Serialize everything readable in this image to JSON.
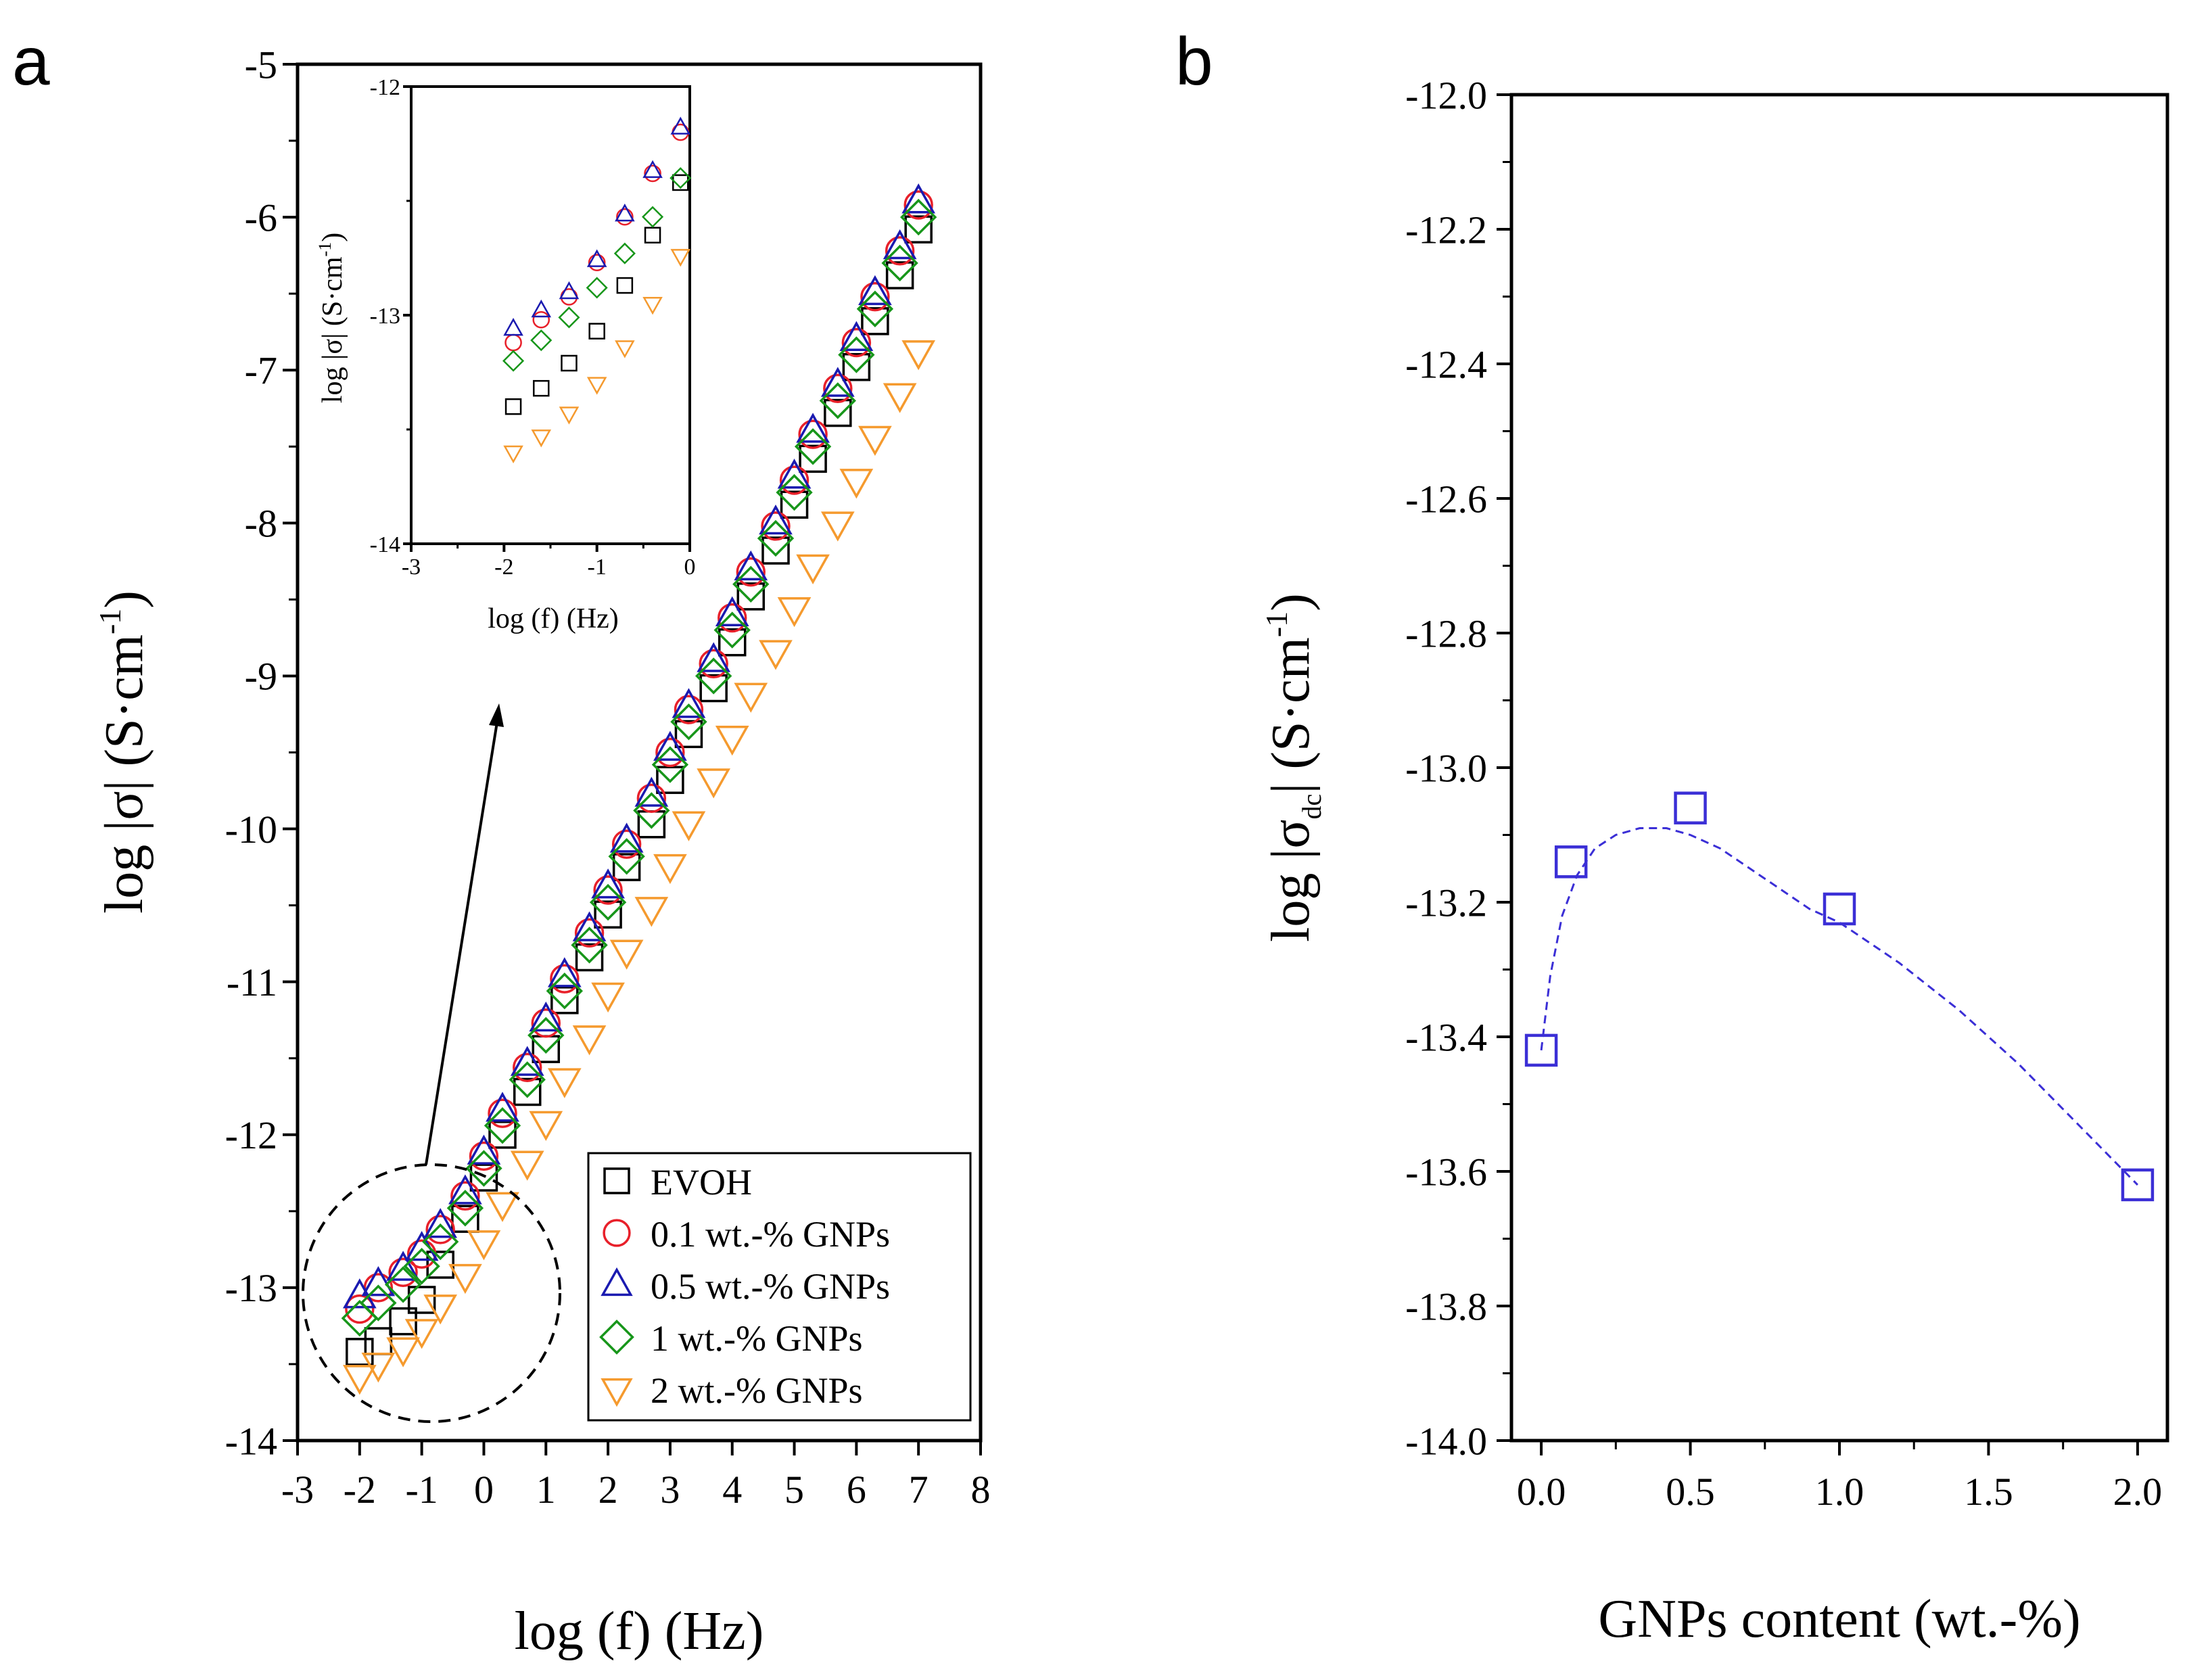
{
  "panel_labels": {
    "a": "a",
    "b": "b"
  },
  "colors": {
    "EVOH": "#000000",
    "GNP01": "#e8202a",
    "GNP05": "#1a1ab0",
    "GNP1": "#17961a",
    "GNP2": "#f59a2e",
    "dc_marker": "#3b2fd6",
    "dc_fit": "#3b2fd6"
  },
  "chart_data": [
    {
      "id": "panel-a-main",
      "type": "scatter",
      "xlabel": "log (f) (Hz)",
      "ylabel": "log |σ| (S·cm",
      "ylabel_sup": "-1",
      "ylabel_close": ")",
      "xlim": [
        -3,
        8
      ],
      "ylim": [
        -14,
        -5
      ],
      "xticks": [
        "-3",
        "-2",
        "-1",
        "0",
        "1",
        "2",
        "3",
        "4",
        "5",
        "6",
        "7",
        "8"
      ],
      "yticks": [
        "-5",
        "-6",
        "-7",
        "-8",
        "-9",
        "-10",
        "-11",
        "-12",
        "-13",
        "-14"
      ],
      "x": [
        -2.0,
        -1.7,
        -1.3,
        -1.0,
        -0.7,
        -0.3,
        0.0,
        0.3,
        0.7,
        1.0,
        1.3,
        1.7,
        2.0,
        2.3,
        2.7,
        3.0,
        3.3,
        3.7,
        4.0,
        4.3,
        4.7,
        5.0,
        5.3,
        5.7,
        6.0,
        6.3,
        6.7,
        7.0
      ],
      "series": [
        {
          "name": "EVOH",
          "marker": "square",
          "color_key": "EVOH",
          "values": [
            -13.42,
            -13.35,
            -13.22,
            -13.08,
            -12.85,
            -12.55,
            -12.28,
            -12.0,
            -11.72,
            -11.44,
            -11.12,
            -10.84,
            -10.56,
            -10.25,
            -9.97,
            -9.68,
            -9.38,
            -9.08,
            -8.78,
            -8.48,
            -8.18,
            -7.88,
            -7.58,
            -7.28,
            -6.98,
            -6.68,
            -6.38,
            -6.08
          ]
        },
        {
          "name": "0.1 wt.-% GNPs",
          "marker": "circle",
          "color_key": "GNP01",
          "values": [
            -13.14,
            -13.0,
            -12.9,
            -12.78,
            -12.62,
            -12.4,
            -12.14,
            -11.86,
            -11.56,
            -11.27,
            -10.98,
            -10.68,
            -10.4,
            -10.1,
            -9.8,
            -9.5,
            -9.22,
            -8.92,
            -8.62,
            -8.32,
            -8.02,
            -7.72,
            -7.42,
            -7.12,
            -6.82,
            -6.52,
            -6.22,
            -5.92
          ]
        },
        {
          "name": "0.5 wt.-% GNPs",
          "marker": "triangle-up",
          "color_key": "GNP05",
          "values": [
            -13.06,
            -12.98,
            -12.88,
            -12.75,
            -12.6,
            -12.38,
            -12.12,
            -11.84,
            -11.54,
            -11.25,
            -10.96,
            -10.66,
            -10.38,
            -10.08,
            -9.78,
            -9.48,
            -9.2,
            -8.9,
            -8.6,
            -8.3,
            -8.0,
            -7.7,
            -7.4,
            -7.1,
            -6.8,
            -6.5,
            -6.2,
            -5.9
          ]
        },
        {
          "name": "1 wt.-% GNPs",
          "marker": "diamond",
          "color_key": "GNP1",
          "values": [
            -13.2,
            -13.1,
            -12.98,
            -12.86,
            -12.7,
            -12.48,
            -12.22,
            -11.94,
            -11.64,
            -11.35,
            -11.06,
            -10.76,
            -10.48,
            -10.18,
            -9.88,
            -9.58,
            -9.3,
            -9.0,
            -8.7,
            -8.4,
            -8.1,
            -7.8,
            -7.5,
            -7.2,
            -6.9,
            -6.6,
            -6.3,
            -6.0
          ]
        },
        {
          "name": "2 wt.-% GNPs",
          "marker": "triangle-down",
          "color_key": "GNP2",
          "values": [
            -13.58,
            -13.5,
            -13.4,
            -13.28,
            -13.12,
            -12.92,
            -12.7,
            -12.45,
            -12.18,
            -11.92,
            -11.64,
            -11.36,
            -11.08,
            -10.8,
            -10.52,
            -10.24,
            -9.96,
            -9.68,
            -9.4,
            -9.12,
            -8.84,
            -8.56,
            -8.28,
            -8.0,
            -7.72,
            -7.44,
            -7.16,
            -6.88
          ]
        }
      ],
      "legend_position": "bottom-right"
    },
    {
      "id": "panel-a-inset",
      "type": "scatter",
      "xlabel": "log (f) (Hz)",
      "ylabel": "log |σ| (S·cm",
      "ylabel_sup": "-1",
      "ylabel_close": ")",
      "xlim": [
        -3,
        0
      ],
      "ylim": [
        -14,
        -12
      ],
      "xticks": [
        "-3",
        "-2",
        "-1",
        "0"
      ],
      "yticks": [
        "-12",
        "-13",
        "-14"
      ],
      "x": [
        -1.9,
        -1.6,
        -1.3,
        -1.0,
        -0.7,
        -0.4,
        -0.1
      ],
      "series": [
        {
          "name": "EVOH",
          "marker": "square",
          "color_key": "EVOH",
          "values": [
            -13.4,
            -13.32,
            -13.21,
            -13.07,
            -12.87,
            -12.65,
            -12.42
          ]
        },
        {
          "name": "0.1 wt.-% GNPs",
          "marker": "circle",
          "color_key": "GNP01",
          "values": [
            -13.12,
            -13.02,
            -12.92,
            -12.77,
            -12.57,
            -12.38,
            -12.2
          ]
        },
        {
          "name": "0.5 wt.-% GNPs",
          "marker": "triangle-up",
          "color_key": "GNP05",
          "values": [
            -13.06,
            -12.98,
            -12.9,
            -12.76,
            -12.56,
            -12.37,
            -12.18
          ]
        },
        {
          "name": "1 wt.-% GNPs",
          "marker": "diamond",
          "color_key": "GNP1",
          "values": [
            -13.2,
            -13.11,
            -13.01,
            -12.88,
            -12.73,
            -12.57,
            -12.4
          ]
        },
        {
          "name": "2 wt.-% GNPs",
          "marker": "triangle-down",
          "color_key": "GNP2",
          "values": [
            -13.6,
            -13.53,
            -13.43,
            -13.3,
            -13.14,
            -12.95,
            -12.74
          ]
        }
      ]
    },
    {
      "id": "panel-b",
      "type": "scatter",
      "xlabel": "GNPs content (wt.-%)",
      "ylabel": "log |σ",
      "ylabel_sub": "dc",
      "ylabel_mid": "| (S·cm",
      "ylabel_sup": "-1",
      "ylabel_close": ")",
      "xlim": [
        -0.1,
        2.1
      ],
      "ylim": [
        -14.0,
        -12.0
      ],
      "xticks": [
        "0.0",
        "0.5",
        "1.0",
        "1.5",
        "2.0"
      ],
      "yticks": [
        "-12.0",
        "-12.2",
        "-12.4",
        "-12.6",
        "-12.8",
        "-13.0",
        "-13.2",
        "-13.4",
        "-13.6",
        "-13.8",
        "-14.0"
      ],
      "x": [
        0.0,
        0.1,
        0.5,
        1.0,
        2.0
      ],
      "values": [
        -13.42,
        -13.14,
        -13.06,
        -13.21,
        -13.62
      ],
      "fit_curve": {
        "x": [
          0.0,
          0.03,
          0.07,
          0.12,
          0.18,
          0.25,
          0.33,
          0.42,
          0.5,
          0.6,
          0.7,
          0.8,
          0.9,
          1.0,
          1.2,
          1.4,
          1.6,
          1.8,
          2.0
        ],
        "y": [
          -13.42,
          -13.31,
          -13.22,
          -13.16,
          -13.12,
          -13.1,
          -13.09,
          -13.09,
          -13.1,
          -13.12,
          -13.15,
          -13.18,
          -13.21,
          -13.23,
          -13.29,
          -13.36,
          -13.44,
          -13.53,
          -13.62
        ]
      }
    }
  ]
}
